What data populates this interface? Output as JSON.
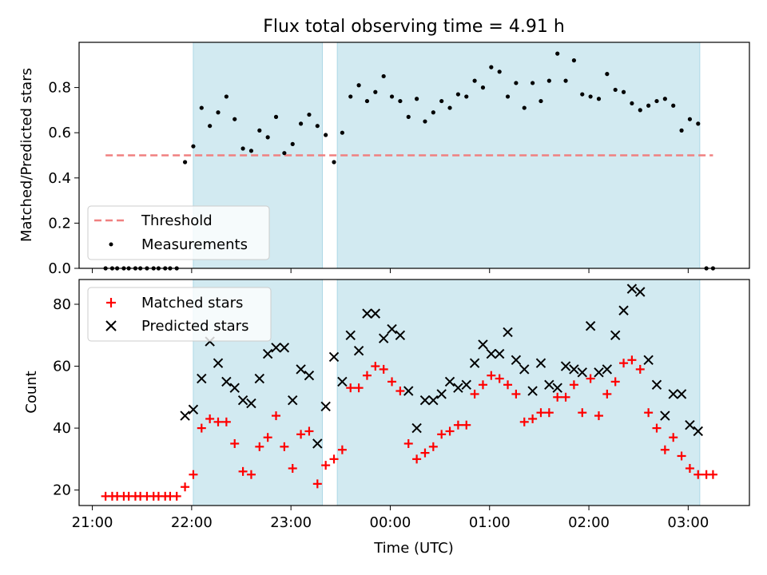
{
  "title": "Flux total observing time = 4.91 h",
  "colors": {
    "shade": "#add8e6",
    "threshold": "#f08080",
    "measurement": "#000000",
    "matched": "#ff0000",
    "predicted": "#000000"
  },
  "chart_data": [
    {
      "type": "scatter",
      "ylabel": "Matched/Predicted stars",
      "ylim": [
        0,
        1.0
      ],
      "yticks": [
        "0.0",
        "0.2",
        "0.4",
        "0.6",
        "0.8"
      ],
      "x_axis": "time (UTC), hours with day offset",
      "xlim": [
        "20:52",
        "03:37"
      ],
      "shaded_intervals": [
        [
          "22:01",
          "23:19"
        ],
        [
          "23:28",
          "03:07"
        ]
      ],
      "legend": {
        "position": "lower-left",
        "entries": [
          "Threshold",
          "Measurements"
        ]
      },
      "threshold": {
        "name": "Threshold",
        "value": 0.5,
        "x_range": [
          "21:08",
          "03:15"
        ]
      },
      "series": [
        {
          "name": "Measurements",
          "marker": "dot",
          "points": [
            [
              "21:08",
              0.0
            ],
            [
              "21:12",
              0.0
            ],
            [
              "21:15",
              0.0
            ],
            [
              "21:19",
              0.0
            ],
            [
              "21:22",
              0.0
            ],
            [
              "21:26",
              0.0
            ],
            [
              "21:29",
              0.0
            ],
            [
              "21:33",
              0.0
            ],
            [
              "21:37",
              0.0
            ],
            [
              "21:40",
              0.0
            ],
            [
              "21:44",
              0.0
            ],
            [
              "21:47",
              0.0
            ],
            [
              "21:51",
              0.0
            ],
            [
              "21:56",
              0.47
            ],
            [
              "22:01",
              0.54
            ],
            [
              "22:06",
              0.71
            ],
            [
              "22:11",
              0.63
            ],
            [
              "22:16",
              0.69
            ],
            [
              "22:21",
              0.76
            ],
            [
              "22:26",
              0.66
            ],
            [
              "22:31",
              0.53
            ],
            [
              "22:36",
              0.52
            ],
            [
              "22:41",
              0.61
            ],
            [
              "22:46",
              0.58
            ],
            [
              "22:51",
              0.67
            ],
            [
              "22:56",
              0.51
            ],
            [
              "23:01",
              0.55
            ],
            [
              "23:06",
              0.64
            ],
            [
              "23:11",
              0.68
            ],
            [
              "23:16",
              0.63
            ],
            [
              "23:21",
              0.59
            ],
            [
              "23:26",
              0.47
            ],
            [
              "23:31",
              0.6
            ],
            [
              "23:36",
              0.76
            ],
            [
              "23:41",
              0.81
            ],
            [
              "23:46",
              0.74
            ],
            [
              "23:51",
              0.78
            ],
            [
              "23:56",
              0.85
            ],
            [
              "00:01",
              0.76
            ],
            [
              "00:06",
              0.74
            ],
            [
              "00:11",
              0.67
            ],
            [
              "00:16",
              0.75
            ],
            [
              "00:21",
              0.65
            ],
            [
              "00:26",
              0.69
            ],
            [
              "00:31",
              0.74
            ],
            [
              "00:36",
              0.71
            ],
            [
              "00:41",
              0.77
            ],
            [
              "00:46",
              0.76
            ],
            [
              "00:51",
              0.83
            ],
            [
              "00:56",
              0.8
            ],
            [
              "01:01",
              0.89
            ],
            [
              "01:06",
              0.87
            ],
            [
              "01:11",
              0.76
            ],
            [
              "01:16",
              0.82
            ],
            [
              "01:21",
              0.71
            ],
            [
              "01:26",
              0.82
            ],
            [
              "01:31",
              0.74
            ],
            [
              "01:36",
              0.83
            ],
            [
              "01:41",
              0.95
            ],
            [
              "01:46",
              0.83
            ],
            [
              "01:51",
              0.92
            ],
            [
              "01:56",
              0.77
            ],
            [
              "02:01",
              0.76
            ],
            [
              "02:06",
              0.75
            ],
            [
              "02:11",
              0.86
            ],
            [
              "02:16",
              0.79
            ],
            [
              "02:21",
              0.78
            ],
            [
              "02:26",
              0.73
            ],
            [
              "02:31",
              0.7
            ],
            [
              "02:36",
              0.72
            ],
            [
              "02:41",
              0.74
            ],
            [
              "02:46",
              0.75
            ],
            [
              "02:51",
              0.72
            ],
            [
              "02:56",
              0.61
            ],
            [
              "03:01",
              0.66
            ],
            [
              "03:06",
              0.64
            ],
            [
              "03:11",
              0.0
            ],
            [
              "03:15",
              0.0
            ]
          ]
        }
      ]
    },
    {
      "type": "scatter",
      "xlabel": "Time (UTC)",
      "ylabel": "Count",
      "ylim": [
        15,
        88
      ],
      "yticks": [
        "20",
        "40",
        "60",
        "80"
      ],
      "xticks": [
        "21:00",
        "22:00",
        "23:00",
        "00:00",
        "01:00",
        "02:00",
        "03:00"
      ],
      "xlim": [
        "20:52",
        "03:37"
      ],
      "shaded_intervals": [
        [
          "22:01",
          "23:19"
        ],
        [
          "23:28",
          "03:07"
        ]
      ],
      "legend": {
        "position": "upper-left",
        "entries": [
          "Matched stars",
          "Predicted stars"
        ]
      },
      "series": [
        {
          "name": "Matched stars",
          "marker": "plus",
          "points": [
            [
              "21:08",
              18
            ],
            [
              "21:12",
              18
            ],
            [
              "21:15",
              18
            ],
            [
              "21:19",
              18
            ],
            [
              "21:22",
              18
            ],
            [
              "21:26",
              18
            ],
            [
              "21:29",
              18
            ],
            [
              "21:33",
              18
            ],
            [
              "21:37",
              18
            ],
            [
              "21:40",
              18
            ],
            [
              "21:44",
              18
            ],
            [
              "21:47",
              18
            ],
            [
              "21:51",
              18
            ],
            [
              "21:56",
              21
            ],
            [
              "22:01",
              25
            ],
            [
              "22:06",
              40
            ],
            [
              "22:11",
              43
            ],
            [
              "22:16",
              42
            ],
            [
              "22:21",
              42
            ],
            [
              "22:26",
              35
            ],
            [
              "22:31",
              26
            ],
            [
              "22:36",
              25
            ],
            [
              "22:41",
              34
            ],
            [
              "22:46",
              37
            ],
            [
              "22:51",
              44
            ],
            [
              "22:56",
              34
            ],
            [
              "23:01",
              27
            ],
            [
              "23:06",
              38
            ],
            [
              "23:11",
              39
            ],
            [
              "23:16",
              22
            ],
            [
              "23:21",
              28
            ],
            [
              "23:26",
              30
            ],
            [
              "23:31",
              33
            ],
            [
              "23:36",
              53
            ],
            [
              "23:41",
              53
            ],
            [
              "23:46",
              57
            ],
            [
              "23:51",
              60
            ],
            [
              "23:56",
              59
            ],
            [
              "00:01",
              55
            ],
            [
              "00:06",
              52
            ],
            [
              "00:11",
              35
            ],
            [
              "00:16",
              30
            ],
            [
              "00:21",
              32
            ],
            [
              "00:26",
              34
            ],
            [
              "00:31",
              38
            ],
            [
              "00:36",
              39
            ],
            [
              "00:41",
              41
            ],
            [
              "00:46",
              41
            ],
            [
              "00:51",
              51
            ],
            [
              "00:56",
              54
            ],
            [
              "01:01",
              57
            ],
            [
              "01:06",
              56
            ],
            [
              "01:11",
              54
            ],
            [
              "01:16",
              51
            ],
            [
              "01:21",
              42
            ],
            [
              "01:26",
              43
            ],
            [
              "01:31",
              45
            ],
            [
              "01:36",
              45
            ],
            [
              "01:41",
              50
            ],
            [
              "01:46",
              50
            ],
            [
              "01:51",
              54
            ],
            [
              "01:56",
              45
            ],
            [
              "02:01",
              56
            ],
            [
              "02:06",
              44
            ],
            [
              "02:11",
              51
            ],
            [
              "02:16",
              55
            ],
            [
              "02:21",
              61
            ],
            [
              "02:26",
              62
            ],
            [
              "02:31",
              59
            ],
            [
              "02:36",
              45
            ],
            [
              "02:41",
              40
            ],
            [
              "02:46",
              33
            ],
            [
              "02:51",
              37
            ],
            [
              "02:56",
              31
            ],
            [
              "03:01",
              27
            ],
            [
              "03:06",
              25
            ],
            [
              "03:11",
              25
            ],
            [
              "03:15",
              25
            ]
          ]
        },
        {
          "name": "Predicted stars",
          "marker": "x",
          "points": [
            [
              "21:56",
              44
            ],
            [
              "22:01",
              46
            ],
            [
              "22:06",
              56
            ],
            [
              "22:11",
              68
            ],
            [
              "22:16",
              61
            ],
            [
              "22:21",
              55
            ],
            [
              "22:26",
              53
            ],
            [
              "22:31",
              49
            ],
            [
              "22:36",
              48
            ],
            [
              "22:41",
              56
            ],
            [
              "22:46",
              64
            ],
            [
              "22:51",
              66
            ],
            [
              "22:56",
              66
            ],
            [
              "23:01",
              49
            ],
            [
              "23:06",
              59
            ],
            [
              "23:11",
              57
            ],
            [
              "23:16",
              35
            ],
            [
              "23:21",
              47
            ],
            [
              "23:26",
              63
            ],
            [
              "23:31",
              55
            ],
            [
              "23:36",
              70
            ],
            [
              "23:41",
              65
            ],
            [
              "23:46",
              77
            ],
            [
              "23:51",
              77
            ],
            [
              "23:56",
              69
            ],
            [
              "00:01",
              72
            ],
            [
              "00:06",
              70
            ],
            [
              "00:11",
              52
            ],
            [
              "00:16",
              40
            ],
            [
              "00:21",
              49
            ],
            [
              "00:26",
              49
            ],
            [
              "00:31",
              51
            ],
            [
              "00:36",
              55
            ],
            [
              "00:41",
              53
            ],
            [
              "00:46",
              54
            ],
            [
              "00:51",
              61
            ],
            [
              "00:56",
              67
            ],
            [
              "01:01",
              64
            ],
            [
              "01:06",
              64
            ],
            [
              "01:11",
              71
            ],
            [
              "01:16",
              62
            ],
            [
              "01:21",
              59
            ],
            [
              "01:26",
              52
            ],
            [
              "01:31",
              61
            ],
            [
              "01:36",
              54
            ],
            [
              "01:41",
              53
            ],
            [
              "01:46",
              60
            ],
            [
              "01:51",
              59
            ],
            [
              "01:56",
              58
            ],
            [
              "02:01",
              73
            ],
            [
              "02:06",
              58
            ],
            [
              "02:11",
              59
            ],
            [
              "02:16",
              70
            ],
            [
              "02:21",
              78
            ],
            [
              "02:26",
              85
            ],
            [
              "02:31",
              84
            ],
            [
              "02:36",
              62
            ],
            [
              "02:41",
              54
            ],
            [
              "02:46",
              44
            ],
            [
              "02:51",
              51
            ],
            [
              "02:56",
              51
            ],
            [
              "03:01",
              41
            ],
            [
              "03:06",
              39
            ]
          ]
        }
      ]
    }
  ]
}
